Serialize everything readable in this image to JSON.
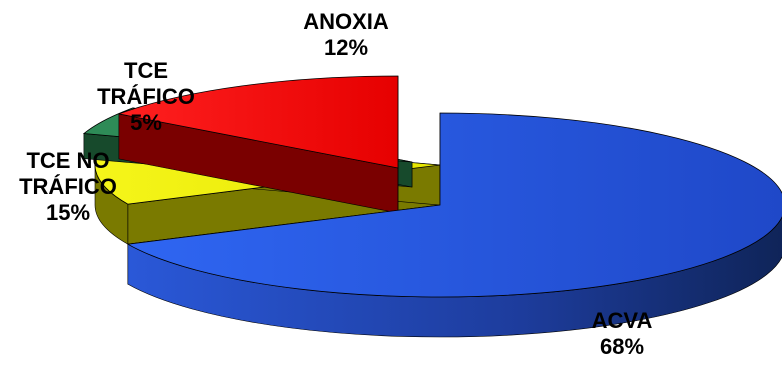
{
  "chart_data": {
    "type": "pie",
    "title": "",
    "slices": [
      {
        "label_lines": [
          "ACVA"
        ],
        "percent_label": "68%",
        "value": 68,
        "color": "#2f5de6",
        "side_color": "#1a3380"
      },
      {
        "label_lines": [
          "ANOXIA"
        ],
        "percent_label": "12%",
        "value": 12,
        "color": "#f0f000",
        "side_color": "#7a7a00"
      },
      {
        "label_lines": [
          "TCE",
          "TRÁFICO"
        ],
        "percent_label": "5%",
        "value": 5,
        "color": "#2e8b57",
        "side_color": "#174a2c"
      },
      {
        "label_lines": [
          "TCE NO",
          "TRÁFICO"
        ],
        "percent_label": "15%",
        "value": 15,
        "color": "#f20000",
        "side_color": "#7a0000"
      }
    ],
    "exploded": true,
    "three_d": true,
    "legend": "none"
  }
}
